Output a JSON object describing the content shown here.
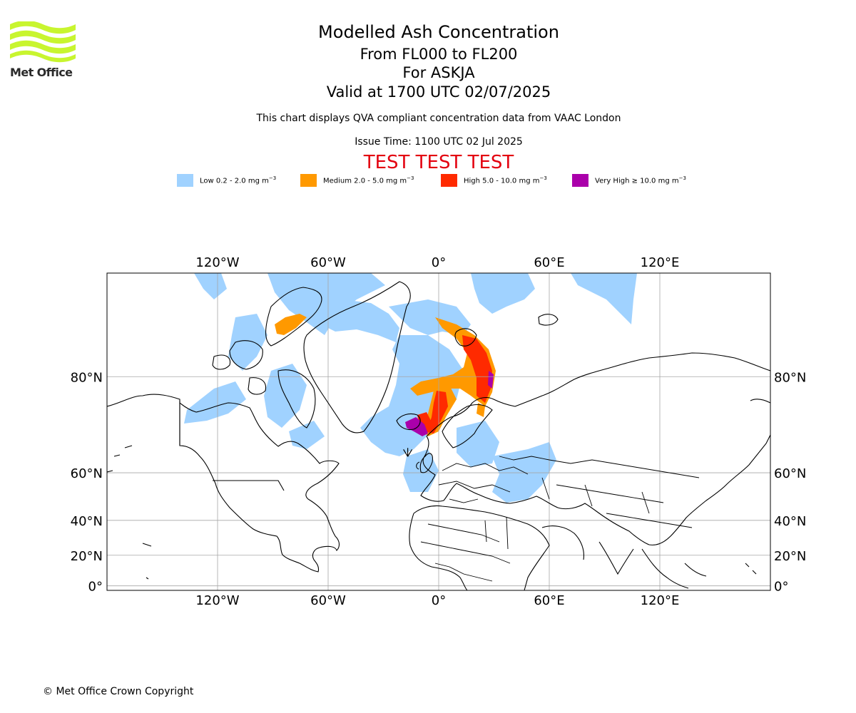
{
  "header": {
    "logo_text": "Met Office",
    "title": "Modelled Ash Concentration",
    "subtitle_levels": "From FL000 to FL200",
    "subtitle_volcano": "For ASKJA",
    "subtitle_valid": "Valid at 1700 UTC 02/07/2025",
    "qva_note": "This chart displays QVA compliant concentration data from VAAC London",
    "issue_time": "Issue Time: 1100 UTC 02 Jul 2025",
    "test_banner": "TEST TEST TEST"
  },
  "legend": [
    {
      "label": "Low 0.2 - 2.0 mg m",
      "exp": "−3",
      "color": "#a0d2ff"
    },
    {
      "label": "Medium 2.0 - 5.0 mg m",
      "exp": "−3",
      "color": "#ff9900"
    },
    {
      "label": "High 5.0 - 10.0 mg m",
      "exp": "−3",
      "color": "#ff2a00"
    },
    {
      "label": "Very High  ≥  10.0 mg m",
      "exp": "−3",
      "color": "#aa00aa"
    }
  ],
  "map": {
    "projection": "Mercator",
    "lon_range": [
      -180,
      180
    ],
    "lat_range": [
      -3,
      87
    ],
    "lon_ticks": [
      {
        "value": -120,
        "label": "120°W"
      },
      {
        "value": -60,
        "label": "60°W"
      },
      {
        "value": 0,
        "label": "0°"
      },
      {
        "value": 60,
        "label": "60°E"
      },
      {
        "value": 120,
        "label": "120°E"
      }
    ],
    "lat_ticks": [
      {
        "value": 80,
        "label": "80°N"
      },
      {
        "value": 60,
        "label": "60°N"
      },
      {
        "value": 40,
        "label": "40°N"
      },
      {
        "value": 20,
        "label": "20°N"
      },
      {
        "value": 0,
        "label": "0°"
      }
    ],
    "grid": true,
    "volcano": {
      "name": "ASKJA",
      "lon": -16.8,
      "lat": 65.0
    }
  },
  "copyright": "© Met Office Crown Copyright"
}
